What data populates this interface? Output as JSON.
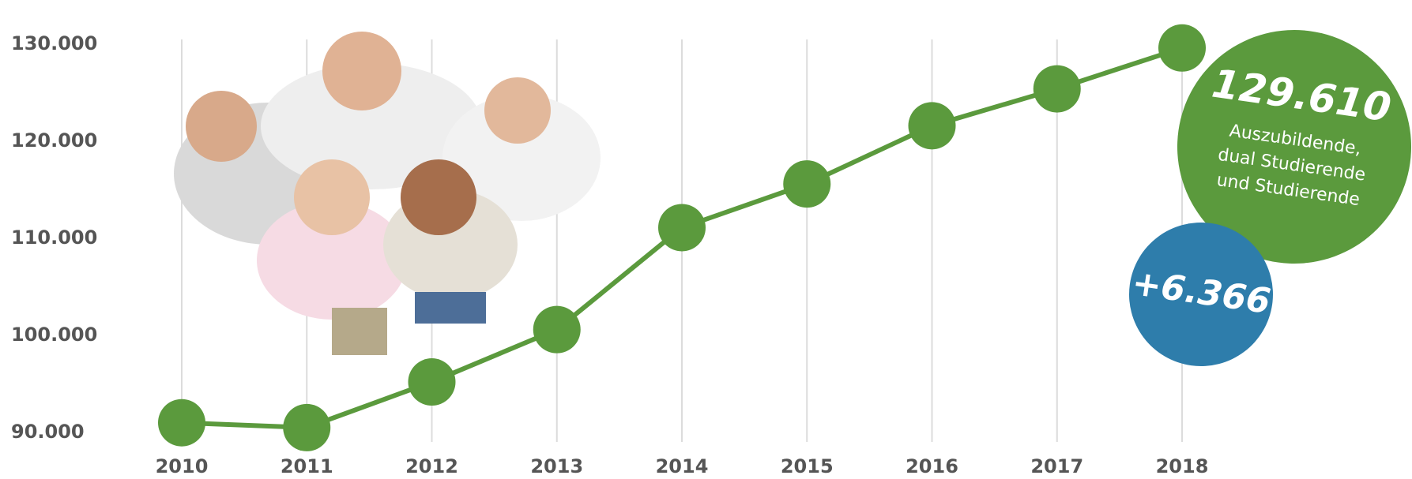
{
  "chart_data": {
    "type": "line",
    "categories": [
      "2010",
      "2011",
      "2012",
      "2013",
      "2014",
      "2015",
      "2016",
      "2017",
      "2018"
    ],
    "series": [
      {
        "color": "#5b9a3d",
        "values": [
          91000,
          90500,
          95200,
          100600,
          111100,
          115600,
          121600,
          125400,
          129610
        ]
      }
    ],
    "ylim": [
      90000,
      130000
    ],
    "yticks": [
      {
        "value": 90000,
        "label": "90.000"
      },
      {
        "value": 100000,
        "label": "100.000"
      },
      {
        "value": 110000,
        "label": "110.000"
      },
      {
        "value": 120000,
        "label": "120.000"
      },
      {
        "value": 130000,
        "label": "130.000"
      }
    ],
    "grid": true,
    "annotations": [
      {
        "text": "129.610",
        "lines": [
          "Auszubildende,",
          "dual Studierende",
          "und Studierende"
        ],
        "color": "#5b9a3d"
      },
      {
        "text": "+6.366",
        "color": "#2e7dab"
      }
    ]
  }
}
